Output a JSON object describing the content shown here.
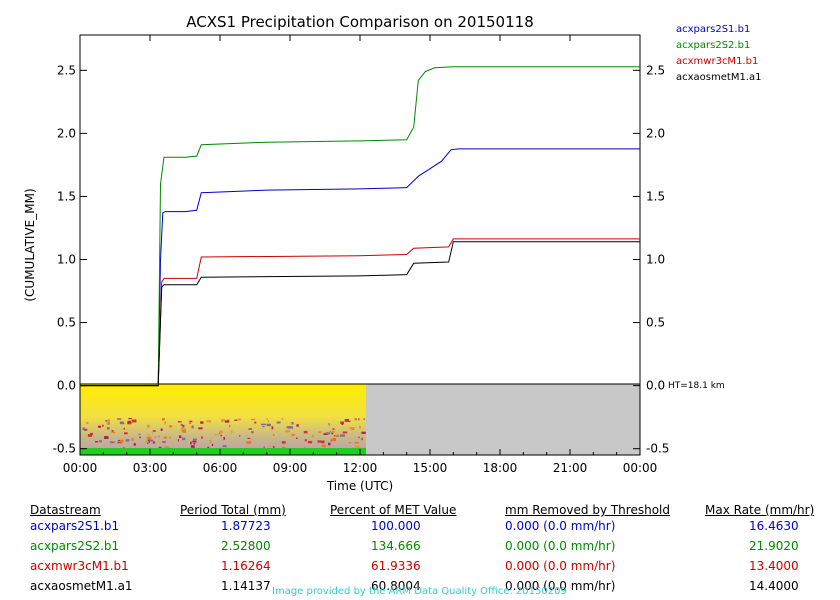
{
  "chart_data": {
    "type": "line",
    "title": "ACXS1 Precipitation Comparison on 20150118",
    "xlabel": "Time (UTC)",
    "ylabel": "(CUMULATIVE_MM)",
    "xlim": [
      0,
      24
    ],
    "ylim": [
      -0.55,
      2.78
    ],
    "x_ticks": [
      "00:00",
      "03:00",
      "06:00",
      "09:00",
      "12:00",
      "15:00",
      "18:00",
      "21:00",
      "00:00"
    ],
    "y_ticks": [
      "-0.5",
      "0.0",
      "0.5",
      "1.0",
      "1.5",
      "2.0",
      "2.5"
    ],
    "right_annotation": "HT=18.1 km",
    "series": [
      {
        "name": "acxpars2S1.b1",
        "color": "#0000cc",
        "x": [
          0,
          3.35,
          3.45,
          3.55,
          3.65,
          4.5,
          5.0,
          5.2,
          8.0,
          12.0,
          14.0,
          14.5,
          15.0,
          15.5,
          15.9,
          16.2,
          24
        ],
        "y": [
          0,
          0,
          1.0,
          1.37,
          1.38,
          1.38,
          1.39,
          1.53,
          1.55,
          1.56,
          1.57,
          1.66,
          1.72,
          1.78,
          1.87,
          1.877,
          1.877
        ]
      },
      {
        "name": "acxpars2S2.b1",
        "color": "#008800",
        "x": [
          0,
          3.35,
          3.45,
          3.6,
          4.5,
          5.0,
          5.2,
          8.0,
          12.0,
          14.0,
          14.3,
          14.5,
          14.8,
          15.2,
          16.0,
          24
        ],
        "y": [
          0,
          0,
          1.6,
          1.81,
          1.81,
          1.82,
          1.91,
          1.93,
          1.94,
          1.95,
          2.05,
          2.42,
          2.49,
          2.52,
          2.528,
          2.528
        ]
      },
      {
        "name": "acxmwr3cM1.b1",
        "color": "#cc0000",
        "x": [
          0,
          3.35,
          3.5,
          3.6,
          5.0,
          5.2,
          12.0,
          14.0,
          14.3,
          15.8,
          16.0,
          24
        ],
        "y": [
          0,
          0,
          0.82,
          0.85,
          0.85,
          1.02,
          1.03,
          1.04,
          1.09,
          1.1,
          1.163,
          1.163
        ]
      },
      {
        "name": "acxaosmetM1.a1",
        "color": "#000000",
        "x": [
          0,
          3.35,
          3.5,
          3.6,
          5.0,
          5.2,
          12.0,
          14.0,
          14.3,
          15.8,
          16.0,
          24
        ],
        "y": [
          0,
          0,
          0.78,
          0.8,
          0.8,
          0.86,
          0.87,
          0.88,
          0.97,
          0.98,
          1.141,
          1.141
        ]
      }
    ]
  },
  "table": {
    "headers": [
      "Datastream",
      "Period Total (mm)",
      "Percent of MET Value",
      "mm Removed by Threshold",
      "Max Rate (mm/hr)"
    ],
    "rows": [
      {
        "name": "acxpars2S1.b1",
        "total": "1.87723",
        "percent": "100.000",
        "removed": "0.000 (0.0 mm/hr)",
        "max": "16.4630"
      },
      {
        "name": "acxpars2S2.b1",
        "total": "2.52800",
        "percent": "134.666",
        "removed": "0.000 (0.0 mm/hr)",
        "max": "21.9020"
      },
      {
        "name": "acxmwr3cM1.b1",
        "total": "1.16264",
        "percent": "61.9336",
        "removed": "0.000 (0.0 mm/hr)",
        "max": "13.4000"
      },
      {
        "name": "acxaosmetM1.a1",
        "total": "1.14137",
        "percent": "60.8004",
        "removed": "0.000 (0.0 mm/hr)",
        "max": "14.4000"
      }
    ]
  },
  "credit": "Image provided by the ARM Data Quality Office: 20150209",
  "colors": {
    "blue": "#0000cc",
    "green": "#008800",
    "red": "#cc0000",
    "black": "#000000",
    "credit": "#33cccc"
  }
}
